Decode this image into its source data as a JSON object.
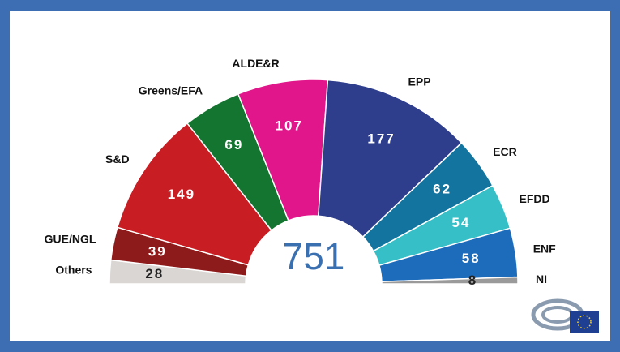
{
  "chart_data": {
    "type": "half-donut",
    "total": 751,
    "categories": [
      "Others",
      "GUE/NGL",
      "S&D",
      "Greens/EFA",
      "ALDE&R",
      "EPP",
      "ECR",
      "EFDD",
      "ENF",
      "NI"
    ],
    "values": [
      28,
      39,
      149,
      69,
      107,
      177,
      62,
      54,
      58,
      8
    ],
    "colors": [
      "#d9d6d3",
      "#8e1b1b",
      "#c81d22",
      "#13752f",
      "#e0168a",
      "#2f3e8c",
      "#13759f",
      "#36bfc6",
      "#1d6cbc",
      "#9a9a9a"
    ],
    "value_text_colors": [
      "#222222",
      "#ffffff",
      "#ffffff",
      "#ffffff",
      "#ffffff",
      "#ffffff",
      "#ffffff",
      "#ffffff",
      "#ffffff",
      "#222222"
    ]
  }
}
